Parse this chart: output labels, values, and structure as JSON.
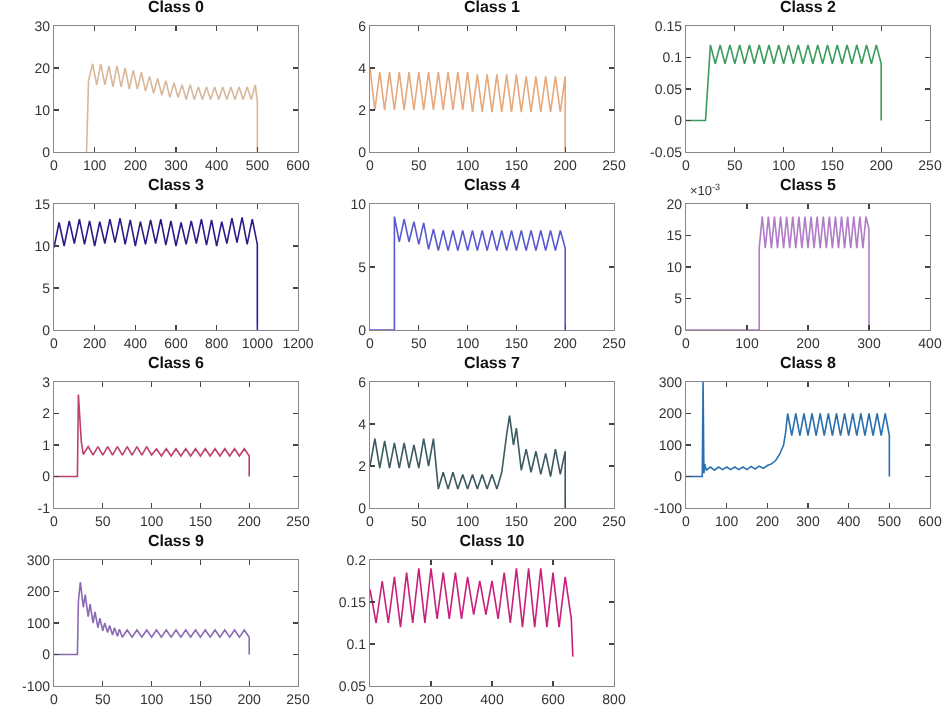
{
  "chart_data": [
    {
      "type": "line",
      "title": "Class 0",
      "color": "#d8b898",
      "xlim": [
        0,
        600
      ],
      "xticks": [
        0,
        100,
        200,
        300,
        400,
        500,
        600
      ],
      "ylim": [
        0,
        30
      ],
      "yticks": [
        0,
        10,
        20,
        30
      ],
      "x": [
        80,
        85,
        95,
        105,
        115,
        125,
        135,
        145,
        155,
        165,
        175,
        185,
        195,
        205,
        215,
        225,
        235,
        245,
        255,
        265,
        275,
        285,
        295,
        305,
        315,
        325,
        335,
        345,
        355,
        365,
        375,
        385,
        395,
        405,
        415,
        425,
        435,
        445,
        455,
        465,
        475,
        485,
        495,
        500,
        500
      ],
      "values": [
        0,
        17,
        21,
        16,
        21,
        16,
        20.5,
        15.5,
        20.5,
        15.5,
        20,
        15,
        19.5,
        15,
        19,
        14.5,
        18,
        14,
        17.5,
        13.5,
        17,
        13,
        16.5,
        13,
        16,
        12.5,
        16,
        12.5,
        15.5,
        12.5,
        15.5,
        12.5,
        15.5,
        12.5,
        15.5,
        12.5,
        15.5,
        12.5,
        15.5,
        12.5,
        15.5,
        12.5,
        16,
        12,
        0
      ]
    },
    {
      "type": "line",
      "title": "Class 1",
      "color": "#e6a87c",
      "xlim": [
        0,
        250
      ],
      "xticks": [
        0,
        50,
        100,
        150,
        200,
        250
      ],
      "ylim": [
        0,
        6
      ],
      "yticks": [
        0,
        2,
        4,
        6
      ],
      "x": [
        0,
        5,
        10,
        15,
        20,
        25,
        30,
        35,
        40,
        45,
        50,
        55,
        60,
        65,
        70,
        75,
        80,
        85,
        90,
        95,
        100,
        105,
        110,
        115,
        120,
        125,
        130,
        135,
        140,
        145,
        150,
        155,
        160,
        165,
        170,
        175,
        180,
        185,
        190,
        195,
        200,
        200
      ],
      "values": [
        4,
        2,
        3.8,
        2,
        3.8,
        2,
        3.8,
        2,
        3.8,
        2,
        3.8,
        2,
        3.8,
        2,
        3.8,
        2,
        3.8,
        2,
        3.8,
        2,
        3.8,
        1.9,
        3.7,
        1.9,
        3.7,
        1.9,
        3.7,
        1.9,
        3.7,
        1.9,
        3.7,
        1.9,
        3.6,
        1.9,
        3.6,
        1.9,
        3.6,
        1.9,
        3.6,
        1.9,
        3.6,
        0
      ]
    },
    {
      "type": "line",
      "title": "Class 2",
      "color": "#3c9c5c",
      "xlim": [
        0,
        250
      ],
      "xticks": [
        0,
        50,
        100,
        150,
        200,
        250
      ],
      "ylim": [
        -0.05,
        0.15
      ],
      "yticks": [
        -0.05,
        0,
        0.05,
        0.1,
        0.15
      ],
      "x": [
        0,
        20,
        25,
        30,
        35,
        40,
        45,
        50,
        55,
        60,
        65,
        70,
        75,
        80,
        85,
        90,
        95,
        100,
        105,
        110,
        115,
        120,
        125,
        130,
        135,
        140,
        145,
        150,
        155,
        160,
        165,
        170,
        175,
        180,
        185,
        190,
        195,
        200,
        200
      ],
      "values": [
        0,
        0,
        0.12,
        0.09,
        0.12,
        0.09,
        0.12,
        0.09,
        0.12,
        0.09,
        0.12,
        0.09,
        0.12,
        0.09,
        0.12,
        0.09,
        0.12,
        0.09,
        0.12,
        0.09,
        0.12,
        0.09,
        0.12,
        0.09,
        0.12,
        0.09,
        0.12,
        0.09,
        0.12,
        0.09,
        0.12,
        0.09,
        0.12,
        0.09,
        0.12,
        0.09,
        0.12,
        0.09,
        0
      ]
    },
    {
      "type": "line",
      "title": "Class 3",
      "color": "#2a1c88",
      "xlim": [
        0,
        1200
      ],
      "xticks": [
        0,
        200,
        400,
        600,
        800,
        1000,
        1200
      ],
      "ylim": [
        0,
        15
      ],
      "yticks": [
        0,
        5,
        10,
        15
      ],
      "x": [
        0,
        25,
        50,
        75,
        100,
        125,
        150,
        175,
        200,
        225,
        250,
        275,
        300,
        325,
        350,
        375,
        400,
        425,
        450,
        475,
        500,
        525,
        550,
        575,
        600,
        625,
        650,
        675,
        700,
        725,
        750,
        775,
        800,
        825,
        850,
        875,
        900,
        925,
        950,
        975,
        1000,
        1000
      ],
      "values": [
        9.8,
        12.8,
        10,
        13,
        10.3,
        13.2,
        10.2,
        13,
        10,
        12.9,
        10.3,
        13.2,
        10.4,
        13.3,
        10.2,
        13.1,
        10,
        12.9,
        10.2,
        13.1,
        10.3,
        13.2,
        10.1,
        13,
        10,
        12.8,
        10.2,
        13,
        10.3,
        13.2,
        10.1,
        13.1,
        10,
        12.9,
        10.3,
        13.3,
        10.4,
        13.4,
        10.2,
        13.2,
        10.2,
        0
      ]
    },
    {
      "type": "line",
      "title": "Class 4",
      "color": "#5858d0",
      "xlim": [
        0,
        250
      ],
      "xticks": [
        0,
        50,
        100,
        150,
        200,
        250
      ],
      "ylim": [
        0,
        10
      ],
      "yticks": [
        0,
        5,
        10
      ],
      "x": [
        0,
        25,
        25,
        30,
        35,
        40,
        45,
        50,
        55,
        60,
        65,
        70,
        75,
        80,
        85,
        90,
        95,
        100,
        105,
        110,
        115,
        120,
        125,
        130,
        135,
        140,
        145,
        150,
        155,
        160,
        165,
        170,
        175,
        180,
        185,
        190,
        195,
        200,
        200
      ],
      "values": [
        0,
        0,
        9,
        7,
        8.8,
        7,
        8.6,
        6.8,
        8.5,
        6.4,
        8,
        6.3,
        7.9,
        6.3,
        7.9,
        6.3,
        7.9,
        6.3,
        7.9,
        6.3,
        7.9,
        6.3,
        7.9,
        6.3,
        7.9,
        6.3,
        7.9,
        6.3,
        7.9,
        6.3,
        7.9,
        6.3,
        7.9,
        6.3,
        7.9,
        6.3,
        7.9,
        6.5,
        0
      ]
    },
    {
      "type": "line",
      "title": "Class 5",
      "color": "#b07cc8",
      "xlim": [
        0,
        400
      ],
      "xticks": [
        0,
        100,
        200,
        300,
        400
      ],
      "ylim": [
        0,
        20
      ],
      "yticks": [
        0,
        5,
        10,
        15,
        20
      ],
      "annotations": [
        "×10$^{-3}$"
      ],
      "x": [
        0,
        120,
        120,
        125,
        130,
        135,
        140,
        145,
        150,
        155,
        160,
        165,
        170,
        175,
        180,
        185,
        190,
        195,
        200,
        205,
        210,
        215,
        220,
        225,
        230,
        235,
        240,
        245,
        250,
        255,
        260,
        265,
        270,
        275,
        280,
        285,
        290,
        295,
        300,
        300
      ],
      "values": [
        0,
        0,
        13,
        18,
        13,
        18,
        13,
        18,
        13,
        18,
        13,
        18,
        13,
        18,
        13,
        18,
        13,
        18,
        13,
        18,
        13,
        18,
        13,
        18,
        13,
        18,
        13,
        18,
        13,
        18,
        13,
        18,
        13,
        18,
        13,
        18,
        13,
        18,
        16,
        0
      ]
    },
    {
      "type": "line",
      "title": "Class 6",
      "color": "#c04068",
      "xlim": [
        0,
        250
      ],
      "xticks": [
        0,
        50,
        100,
        150,
        200,
        250
      ],
      "ylim": [
        -1,
        3
      ],
      "yticks": [
        -1,
        0,
        1,
        2,
        3
      ],
      "x": [
        0,
        24,
        25,
        28,
        30,
        35,
        40,
        45,
        50,
        55,
        60,
        65,
        70,
        75,
        80,
        85,
        90,
        95,
        100,
        105,
        110,
        115,
        120,
        125,
        130,
        135,
        140,
        145,
        150,
        155,
        160,
        165,
        170,
        175,
        180,
        185,
        190,
        195,
        200,
        200
      ],
      "values": [
        0,
        0,
        2.6,
        1.1,
        0.7,
        0.95,
        0.68,
        0.95,
        0.68,
        0.95,
        0.68,
        0.95,
        0.68,
        0.95,
        0.68,
        0.95,
        0.68,
        0.95,
        0.68,
        0.88,
        0.65,
        0.88,
        0.65,
        0.88,
        0.65,
        0.88,
        0.65,
        0.88,
        0.65,
        0.88,
        0.65,
        0.88,
        0.65,
        0.88,
        0.65,
        0.88,
        0.65,
        0.88,
        0.65,
        0
      ]
    },
    {
      "type": "line",
      "title": "Class 7",
      "color": "#3c5a62",
      "xlim": [
        0,
        250
      ],
      "xticks": [
        0,
        50,
        100,
        150,
        200,
        250
      ],
      "ylim": [
        0,
        6
      ],
      "yticks": [
        0,
        2,
        4,
        6
      ],
      "x": [
        0,
        5,
        10,
        15,
        20,
        25,
        30,
        35,
        40,
        45,
        50,
        55,
        60,
        65,
        70,
        75,
        80,
        85,
        90,
        95,
        100,
        105,
        110,
        115,
        120,
        125,
        130,
        135,
        140,
        143,
        147,
        150,
        155,
        160,
        165,
        170,
        175,
        180,
        185,
        190,
        195,
        200,
        200
      ],
      "values": [
        2,
        3.3,
        1.9,
        3.2,
        1.9,
        3.1,
        1.9,
        3.1,
        1.9,
        3,
        1.9,
        3.3,
        2,
        3.3,
        0.9,
        1.7,
        0.9,
        1.7,
        0.9,
        1.6,
        0.9,
        1.6,
        0.9,
        1.6,
        0.9,
        1.6,
        0.9,
        1.7,
        3.5,
        4.4,
        3,
        3.8,
        1.8,
        2.8,
        1.7,
        2.7,
        1.6,
        2.6,
        1.5,
        2.8,
        1.6,
        2.7,
        0
      ]
    },
    {
      "type": "line",
      "title": "Class 8",
      "color": "#2a70b0",
      "xlim": [
        0,
        600
      ],
      "xticks": [
        0,
        100,
        200,
        300,
        400,
        500,
        600
      ],
      "ylim": [
        -100,
        300
      ],
      "yticks": [
        -100,
        0,
        100,
        200,
        300
      ],
      "x": [
        0,
        40,
        42,
        44,
        46,
        50,
        60,
        70,
        80,
        90,
        100,
        110,
        120,
        130,
        140,
        150,
        160,
        170,
        180,
        190,
        200,
        210,
        220,
        230,
        240,
        245,
        250,
        260,
        270,
        280,
        290,
        300,
        310,
        320,
        330,
        340,
        350,
        360,
        370,
        380,
        390,
        400,
        410,
        420,
        430,
        440,
        450,
        460,
        470,
        480,
        490,
        500,
        500
      ],
      "values": [
        0,
        0,
        300,
        10,
        40,
        20,
        30,
        20,
        30,
        22,
        30,
        22,
        30,
        22,
        30,
        22,
        32,
        24,
        33,
        26,
        35,
        40,
        50,
        70,
        100,
        140,
        200,
        130,
        200,
        130,
        200,
        130,
        200,
        130,
        200,
        130,
        200,
        130,
        200,
        130,
        200,
        130,
        200,
        130,
        200,
        130,
        200,
        130,
        200,
        130,
        200,
        130,
        0
      ]
    },
    {
      "type": "line",
      "title": "Class 9",
      "color": "#8a6ab2",
      "xlim": [
        0,
        250
      ],
      "xticks": [
        0,
        50,
        100,
        150,
        200,
        250
      ],
      "ylim": [
        -100,
        300
      ],
      "yticks": [
        -100,
        0,
        100,
        200,
        300
      ],
      "x": [
        0,
        24,
        25,
        27,
        30,
        32,
        35,
        37,
        40,
        42,
        45,
        47,
        50,
        52,
        55,
        57,
        60,
        62,
        65,
        67,
        70,
        75,
        80,
        85,
        90,
        95,
        100,
        105,
        110,
        115,
        120,
        125,
        130,
        135,
        140,
        145,
        150,
        155,
        160,
        165,
        170,
        175,
        180,
        185,
        190,
        195,
        200,
        200
      ],
      "values": [
        0,
        0,
        170,
        230,
        150,
        190,
        120,
        160,
        100,
        135,
        85,
        115,
        75,
        100,
        70,
        92,
        62,
        85,
        58,
        80,
        55,
        78,
        55,
        78,
        55,
        78,
        55,
        78,
        55,
        78,
        55,
        78,
        55,
        78,
        55,
        78,
        55,
        78,
        55,
        78,
        55,
        78,
        55,
        78,
        55,
        78,
        55,
        0
      ]
    },
    {
      "type": "line",
      "title": "Class 10",
      "color": "#c8207a",
      "xlim": [
        0,
        800
      ],
      "xticks": [
        0,
        200,
        400,
        600,
        800
      ],
      "ylim": [
        0.05,
        0.2
      ],
      "yticks": [
        0.05,
        0.1,
        0.15,
        0.2
      ],
      "x": [
        0,
        20,
        40,
        60,
        80,
        100,
        120,
        140,
        160,
        180,
        200,
        220,
        240,
        260,
        280,
        300,
        320,
        340,
        360,
        380,
        400,
        420,
        440,
        460,
        480,
        500,
        520,
        540,
        560,
        580,
        600,
        620,
        640,
        660,
        665
      ],
      "values": [
        0.165,
        0.125,
        0.175,
        0.125,
        0.18,
        0.12,
        0.185,
        0.125,
        0.19,
        0.125,
        0.19,
        0.13,
        0.185,
        0.13,
        0.185,
        0.13,
        0.18,
        0.135,
        0.175,
        0.135,
        0.175,
        0.13,
        0.185,
        0.125,
        0.19,
        0.12,
        0.19,
        0.12,
        0.19,
        0.12,
        0.185,
        0.12,
        0.18,
        0.13,
        0.085
      ]
    }
  ]
}
